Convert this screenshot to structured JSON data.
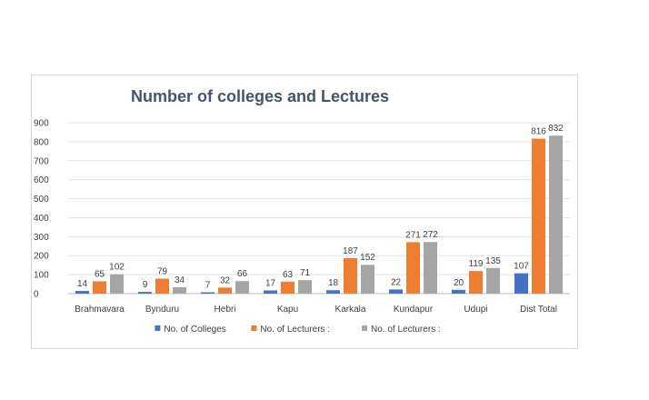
{
  "chart_data": {
    "type": "bar",
    "title": "Number of colleges and Lectures",
    "categories": [
      "Brahmavara",
      "Bynduru",
      "Hebri",
      "Kapu",
      "Karkala",
      "Kundapur",
      "Udupi",
      "Dist Total"
    ],
    "series": [
      {
        "name": "No. of Colleges",
        "color": "#4472c4",
        "values": [
          14,
          9,
          7,
          17,
          18,
          22,
          20,
          107
        ]
      },
      {
        "name": "No. of Lecturers :",
        "color": "#ed7d31",
        "values": [
          65,
          79,
          32,
          63,
          187,
          271,
          119,
          816
        ]
      },
      {
        "name": "No. of Lecturers :",
        "color": "#a5a5a5",
        "values": [
          102,
          34,
          66,
          71,
          152,
          272,
          135,
          832
        ]
      }
    ],
    "ylim": [
      0,
      900
    ],
    "yticks": [
      "0",
      "100",
      "200",
      "300",
      "400",
      "500",
      "600",
      "700",
      "800",
      "900"
    ],
    "grid": true,
    "legend_position": "bottom",
    "data_labels": true
  }
}
